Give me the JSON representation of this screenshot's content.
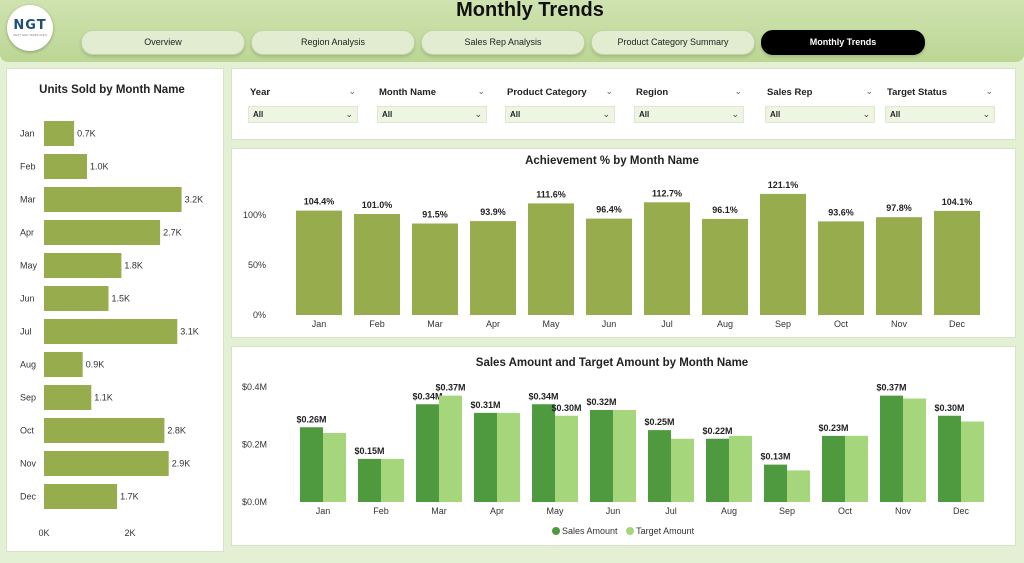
{
  "header": {
    "logo_text": "NGT",
    "logo_sub": "NEXT GEN TEMPLATES",
    "title": "Monthly Trends",
    "tabs": [
      {
        "label": "Overview"
      },
      {
        "label": "Region Analysis"
      },
      {
        "label": "Sales Rep Analysis"
      },
      {
        "label": "Product Category Summary"
      },
      {
        "label": "Monthly Trends"
      }
    ]
  },
  "filters": [
    {
      "label": "Year",
      "value": "All"
    },
    {
      "label": "Month Name",
      "value": "All"
    },
    {
      "label": "Product Category",
      "value": "All"
    },
    {
      "label": "Region",
      "value": "All"
    },
    {
      "label": "Sales Rep",
      "value": "All"
    },
    {
      "label": "Target Status",
      "value": "All"
    }
  ],
  "colors": {
    "bar_olive": "#97ad4d",
    "sales": "#4f9a3e",
    "target": "#a6d67c"
  },
  "chart_data": [
    {
      "type": "bar",
      "orientation": "horizontal",
      "title": "Units Sold by Month Name",
      "categories": [
        "Jan",
        "Feb",
        "Mar",
        "Apr",
        "May",
        "Jun",
        "Jul",
        "Aug",
        "Sep",
        "Oct",
        "Nov",
        "Dec"
      ],
      "values": [
        0.7,
        1.0,
        3.2,
        2.7,
        1.8,
        1.5,
        3.1,
        0.9,
        1.1,
        2.8,
        2.9,
        1.7
      ],
      "labels": [
        "0.7K",
        "1.0K",
        "3.2K",
        "2.7K",
        "1.8K",
        "1.5K",
        "3.1K",
        "0.9K",
        "1.1K",
        "2.8K",
        "2.9K",
        "1.7K"
      ],
      "xticks": [
        "0K",
        "2K"
      ],
      "xlim": [
        0,
        4
      ]
    },
    {
      "type": "bar",
      "title": "Achievement % by Month Name",
      "categories": [
        "Jan",
        "Feb",
        "Mar",
        "Apr",
        "May",
        "Jun",
        "Jul",
        "Aug",
        "Sep",
        "Oct",
        "Nov",
        "Dec"
      ],
      "values": [
        104.4,
        101.0,
        91.5,
        93.9,
        111.6,
        96.4,
        112.7,
        96.1,
        121.1,
        93.6,
        97.8,
        104.1
      ],
      "labels": [
        "104.4%",
        "101.0%",
        "91.5%",
        "93.9%",
        "111.6%",
        "96.4%",
        "112.7%",
        "96.1%",
        "121.1%",
        "93.6%",
        "97.8%",
        "104.1%"
      ],
      "yticks": [
        "0%",
        "50%",
        "100%"
      ],
      "ylim": [
        0,
        125
      ]
    },
    {
      "type": "bar",
      "title": "Sales Amount and Target Amount by Month Name",
      "categories": [
        "Jan",
        "Feb",
        "Mar",
        "Apr",
        "May",
        "Jun",
        "Jul",
        "Aug",
        "Sep",
        "Oct",
        "Nov",
        "Dec"
      ],
      "series": [
        {
          "name": "Sales Amount",
          "values": [
            0.26,
            0.15,
            0.34,
            0.31,
            0.34,
            0.32,
            0.25,
            0.22,
            0.13,
            0.23,
            0.37,
            0.3
          ],
          "labels": [
            "$0.26M",
            "$0.15M",
            "$0.34M",
            "$0.31M",
            "$0.34M",
            "$0.32M",
            "$0.25M",
            "$0.22M",
            "$0.13M",
            "$0.23M",
            "$0.37M",
            "$0.30M"
          ]
        },
        {
          "name": "Target Amount",
          "values": [
            0.24,
            0.15,
            0.37,
            0.31,
            0.3,
            0.32,
            0.22,
            0.23,
            0.11,
            0.23,
            0.36,
            0.28
          ],
          "labels": [
            "",
            "",
            "$0.37M",
            "",
            "$0.30M",
            "",
            "",
            "",
            "",
            "",
            "",
            ""
          ]
        }
      ],
      "yticks": [
        "$0.0M",
        "$0.2M",
        "$0.4M"
      ],
      "ylim": [
        0,
        0.4
      ],
      "legend": "bottom"
    }
  ]
}
